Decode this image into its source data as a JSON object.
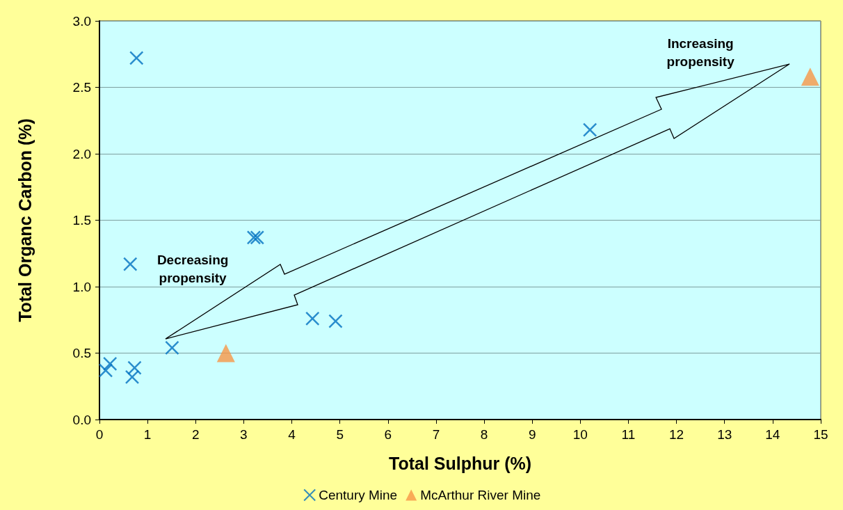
{
  "chart_data": {
    "type": "scatter",
    "xlabel": "Total Sulphur (%)",
    "ylabel": "Total Organc Carbon (%)",
    "xlim": [
      0,
      15
    ],
    "xticks": [
      0,
      1,
      2,
      3,
      4,
      5,
      6,
      7,
      8,
      9,
      10,
      11,
      12,
      13,
      14,
      15
    ],
    "ylim": [
      0,
      3
    ],
    "yticks": [
      {
        "value": 0,
        "label": "0.0"
      },
      {
        "value": 0.5,
        "label": "0.5"
      },
      {
        "value": 1,
        "label": "1.0"
      },
      {
        "value": 1.5,
        "label": "1.5"
      },
      {
        "value": 2,
        "label": "2.0"
      },
      {
        "value": 2.5,
        "label": "2.5"
      },
      {
        "value": 3,
        "label": "3.0"
      }
    ],
    "grid": "y",
    "legend": "bottom",
    "annotations": [
      "Increasing propensity",
      "Decreasing propensity"
    ],
    "series": [
      {
        "name": "Century Mine",
        "color": "#0070c0",
        "marker": "cross",
        "x": [
          0.13,
          0.22,
          0.68,
          0.73,
          0.64,
          0.77,
          1.51,
          3.21,
          3.28,
          4.43,
          4.91,
          10.2
        ],
        "values": [
          0.37,
          0.42,
          0.32,
          0.39,
          1.17,
          2.72,
          0.54,
          1.37,
          1.37,
          0.76,
          0.74,
          2.18
        ]
      },
      {
        "name": "McArthur River Mine",
        "color": "#f79646",
        "marker": "triangle",
        "x": [
          2.63,
          14.78
        ],
        "values": [
          0.5,
          2.58
        ]
      }
    ]
  }
}
